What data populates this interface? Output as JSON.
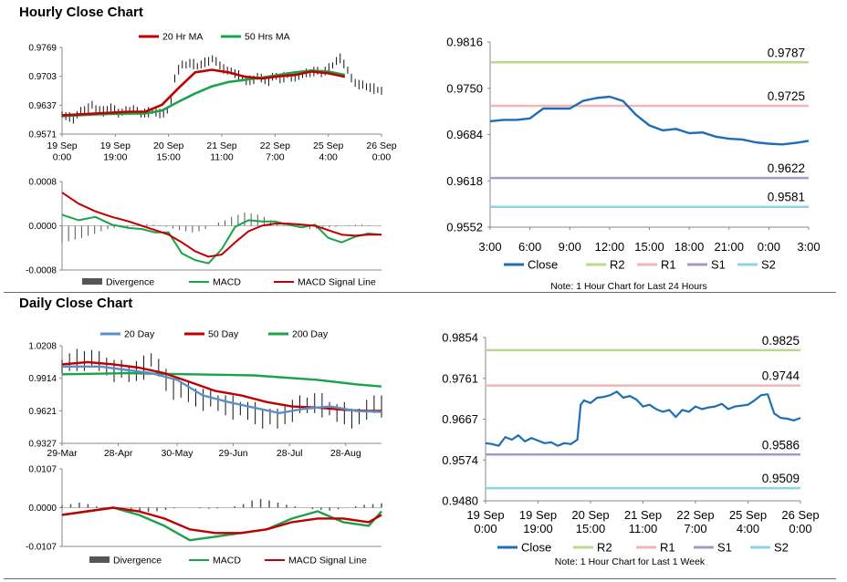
{
  "sections": {
    "hourly_title": "Hourly Close Chart",
    "daily_title": "Daily Close Chart"
  },
  "colors": {
    "close": "#1f6eb5",
    "ma_short": "#c00000",
    "ma_long": "#1aa34a",
    "ma20_day": "#5b8fc8",
    "r2": "#b9d98c",
    "r1": "#f2b6b6",
    "s1": "#a898c4",
    "s2": "#8fd3e3",
    "divergence": "#555555",
    "price_bar": "#111111"
  },
  "chart_data": [
    {
      "id": "hourly_price",
      "type": "line",
      "legend": [
        "20 Hr MA",
        "50 Hrs MA"
      ],
      "yticks": [
        "0.9769",
        "0.9703",
        "0.9637",
        "0.9571"
      ],
      "ylim": [
        0.9571,
        0.9769
      ],
      "xticks": [
        [
          "19 Sep",
          "0:00"
        ],
        [
          "19 Sep",
          "19:00"
        ],
        [
          "20 Sep",
          "15:00"
        ],
        [
          "21 Sep",
          "11:00"
        ],
        [
          "22 Sep",
          "7:00"
        ],
        [
          "25 Sep",
          "4:00"
        ],
        [
          "26 Sep",
          "0:00"
        ]
      ],
      "xlim": [
        0,
        96
      ],
      "price": [
        0.9616,
        0.9612,
        0.961,
        0.9608,
        0.9614,
        0.9622,
        0.9628,
        0.9632,
        0.9636,
        0.963,
        0.9626,
        0.9624,
        0.9628,
        0.9632,
        0.9626,
        0.9622,
        0.962,
        0.9624,
        0.9626,
        0.9628,
        0.9622,
        0.9618,
        0.962,
        0.9622,
        0.9624,
        0.962,
        0.9618,
        0.9622,
        0.9625,
        0.9648,
        0.97,
        0.972,
        0.9728,
        0.973,
        0.9734,
        0.9732,
        0.9726,
        0.973,
        0.9735,
        0.974,
        0.9742,
        0.9736,
        0.973,
        0.9722,
        0.9714,
        0.9716,
        0.971,
        0.9706,
        0.9698,
        0.9692,
        0.9694,
        0.9698,
        0.9702,
        0.9698,
        0.9696,
        0.9694,
        0.97,
        0.9704,
        0.9698,
        0.9702,
        0.9706,
        0.97,
        0.9702,
        0.9708,
        0.9706,
        0.971,
        0.9712,
        0.9716,
        0.9714,
        0.971,
        0.9716,
        0.9722,
        0.9728,
        0.9738,
        0.9744,
        0.9734,
        0.9716,
        0.9698,
        0.969,
        0.9686,
        0.9682,
        0.968,
        0.9678,
        0.9676,
        0.9672,
        0.967
      ],
      "series": [
        {
          "name": "20 Hr MA",
          "x": [
            0,
            10,
            20,
            25,
            30,
            35,
            40,
            45,
            50,
            55,
            60,
            65,
            70,
            75,
            80,
            85
          ],
          "values": [
            0.9614,
            0.9618,
            0.9622,
            0.9622,
            0.9638,
            0.9676,
            0.9712,
            0.9718,
            0.9712,
            0.9702,
            0.9698,
            0.9703,
            0.9706,
            0.9714,
            0.971,
            0.9702
          ]
        },
        {
          "name": "50 Hrs MA",
          "x": [
            0,
            10,
            20,
            25,
            30,
            35,
            40,
            45,
            50,
            55,
            60,
            65,
            70,
            75,
            80,
            85
          ],
          "values": [
            0.9612,
            0.9616,
            0.9618,
            0.9618,
            0.9625,
            0.9645,
            0.9664,
            0.968,
            0.969,
            0.9695,
            0.97,
            0.9706,
            0.9712,
            0.9716,
            0.9714,
            0.9706
          ]
        }
      ]
    },
    {
      "id": "hourly_macd",
      "type": "line",
      "legend": [
        "Divergence",
        "MACD",
        "MACD Signal Line"
      ],
      "yticks": [
        "0.0008",
        "0.0000",
        "-0.0008"
      ],
      "ylim": [
        -0.0008,
        0.0008
      ],
      "divergence": [
        -0.0003,
        -0.00028,
        -0.00025,
        -0.00022,
        -0.00018,
        -0.00015,
        -0.0001,
        -6e-05,
        -4e-05,
        -3e-05,
        -2e-05,
        -1e-05,
        2e-05,
        3e-05,
        2e-05,
        1e-05,
        -2e-05,
        -5e-05,
        -8e-05,
        -0.0001,
        -0.00012,
        -0.0001,
        -6e-05,
        0.0,
        6e-05,
        0.0001,
        0.00016,
        0.0002,
        0.00024,
        0.00022,
        0.0002,
        0.00016,
        0.0001,
        6e-05,
        2e-05,
        0.0,
        -2e-05,
        -4e-05,
        -6e-05,
        -5e-05,
        -4e-05,
        -3e-05,
        -2e-05,
        0.0,
        1e-05,
        2e-05,
        2e-05,
        1e-05,
        0.0,
        0.0
      ],
      "series": [
        {
          "name": "MACD",
          "x": [
            0,
            5,
            10,
            15,
            20,
            24,
            28,
            32,
            36,
            40,
            44,
            48,
            52,
            56,
            60,
            64,
            68,
            72,
            76,
            80,
            84,
            88,
            92,
            96
          ],
          "values": [
            0.0002,
            0.0001,
            0.00016,
            2e-05,
            -4e-05,
            -6e-05,
            -0.00012,
            -0.00012,
            -0.0005,
            -0.00062,
            -0.00068,
            -0.00042,
            -2e-05,
            0.0001,
            8e-05,
            8e-05,
            2e-05,
            -3e-05,
            2e-05,
            -0.00022,
            -0.0003,
            -0.0002,
            -0.00014,
            -0.00016
          ]
        },
        {
          "name": "MACD Signal Line",
          "x": [
            0,
            5,
            10,
            15,
            20,
            24,
            28,
            32,
            36,
            40,
            44,
            48,
            52,
            56,
            60,
            64,
            68,
            72,
            76,
            80,
            84,
            88,
            92,
            96
          ],
          "values": [
            0.0006,
            0.0004,
            0.00026,
            0.00016,
            8e-05,
            0.0,
            -8e-05,
            -0.00016,
            -0.0003,
            -0.00046,
            -0.00056,
            -0.00052,
            -0.0003,
            -0.0001,
            0.0,
            4e-05,
            4e-05,
            2e-05,
            0.0,
            -8e-05,
            -0.00016,
            -0.00018,
            -0.00016,
            -0.00016
          ]
        }
      ]
    },
    {
      "id": "hourly_close",
      "type": "line",
      "yticks": [
        "0.9816",
        "0.9750",
        "0.9684",
        "0.9618",
        "0.9552"
      ],
      "ylim": [
        0.9552,
        0.9816
      ],
      "xticks": [
        "3:00",
        "6:00",
        "9:00",
        "12:00",
        "15:00",
        "18:00",
        "21:00",
        "0:00",
        "3:00"
      ],
      "x": [
        0,
        1,
        2,
        3,
        4,
        5,
        6,
        7,
        8,
        9,
        10,
        11,
        12,
        13,
        14,
        15,
        16,
        17,
        18,
        19,
        20,
        21,
        22,
        23,
        24
      ],
      "series": [
        {
          "name": "Close",
          "values": [
            0.9703,
            0.9705,
            0.9705,
            0.9707,
            0.9721,
            0.9721,
            0.9721,
            0.9732,
            0.9736,
            0.9738,
            0.9732,
            0.9712,
            0.9697,
            0.969,
            0.9692,
            0.9686,
            0.9687,
            0.9681,
            0.9678,
            0.9677,
            0.9673,
            0.9671,
            0.967,
            0.9672,
            0.9675
          ]
        }
      ],
      "levels": [
        {
          "name": "R2",
          "value": 0.9787,
          "label": "0.9787"
        },
        {
          "name": "R1",
          "value": 0.9725,
          "label": "0.9725"
        },
        {
          "name": "S1",
          "value": 0.9622,
          "label": "0.9622"
        },
        {
          "name": "S2",
          "value": 0.9581,
          "label": "0.9581"
        }
      ],
      "legend": [
        "Close",
        "R2",
        "R1",
        "S1",
        "S2"
      ],
      "note": "Note: 1 Hour Chart for Last 24 Hours"
    },
    {
      "id": "daily_price",
      "type": "line",
      "legend": [
        "20 Day",
        "50 Day",
        "200 Day"
      ],
      "yticks": [
        "1.0208",
        "0.9914",
        "0.9621",
        "0.9327"
      ],
      "ylim": [
        0.9327,
        1.0208
      ],
      "xticks": [
        "29-Mar",
        "28-Apr",
        "30-May",
        "29-Jun",
        "28-Jul",
        "28-Aug"
      ],
      "xlim": [
        0,
        125
      ],
      "price": [
        1.002,
        1.006,
        1.008,
        1.01,
        1.009,
        1.006,
        1.004,
        1.0,
        0.998,
        0.996,
        0.999,
        1.002,
        1.008,
        1.001,
        0.99,
        0.984,
        0.98,
        0.978,
        0.976,
        0.974,
        0.972,
        0.97,
        0.968,
        0.966,
        0.964,
        0.962,
        0.96,
        0.958,
        0.956,
        0.954,
        0.96,
        0.964,
        0.966,
        0.968,
        0.97,
        0.968,
        0.964,
        0.96,
        0.96,
        0.958,
        0.956,
        0.962,
        0.97,
        0.968
      ],
      "series": [
        {
          "name": "20 Day",
          "x": [
            0,
            15,
            25,
            35,
            45,
            55,
            65,
            75,
            85,
            95,
            105,
            115,
            125
          ],
          "values": [
            1.002,
            1.002,
            0.999,
            0.996,
            0.99,
            0.976,
            0.97,
            0.965,
            0.96,
            0.964,
            0.966,
            0.962,
            0.961
          ]
        },
        {
          "name": "50 Day",
          "x": [
            0,
            10,
            20,
            30,
            40,
            50,
            60,
            70,
            80,
            90,
            100,
            110,
            120,
            125
          ],
          "values": [
            1.004,
            1.006,
            1.004,
            1.001,
            0.996,
            0.988,
            0.98,
            0.976,
            0.97,
            0.966,
            0.965,
            0.963,
            0.962,
            0.962
          ]
        },
        {
          "name": "200 Day",
          "x": [
            0,
            25,
            50,
            75,
            100,
            115,
            125
          ],
          "values": [
            0.995,
            0.996,
            0.995,
            0.994,
            0.99,
            0.986,
            0.984
          ]
        }
      ]
    },
    {
      "id": "daily_macd",
      "type": "line",
      "legend": [
        "Divergence",
        "MACD",
        "MACD Signal Line"
      ],
      "yticks": [
        "0.0107",
        "0.0000",
        "-0.0107"
      ],
      "ylim": [
        -0.0107,
        0.0107
      ],
      "divergence": [
        0.0006,
        0.001,
        0.0014,
        0.001,
        0.0004,
        0.0,
        -0.0004,
        -0.0008,
        -0.0012,
        -0.0014,
        -0.0012,
        -0.001,
        -0.0006,
        -0.0002,
        0.0,
        0.0,
        -0.0002,
        -0.0003,
        -0.0002,
        0.0,
        0.0004,
        0.001,
        0.002,
        0.0024,
        0.002,
        0.0014,
        0.0008,
        0.0004,
        0.0,
        -0.0004,
        -0.0006,
        -0.0008,
        -0.0004,
        0.0,
        0.0004,
        0.0008,
        0.001,
        0.0012
      ],
      "series": [
        {
          "name": "MACD",
          "x": [
            0,
            10,
            20,
            30,
            40,
            50,
            60,
            70,
            80,
            90,
            100,
            110,
            120,
            125
          ],
          "values": [
            -0.002,
            -0.001,
            0.0,
            -0.002,
            -0.005,
            -0.009,
            -0.008,
            -0.007,
            -0.006,
            -0.003,
            -0.001,
            -0.004,
            -0.005,
            -0.001
          ]
        },
        {
          "name": "MACD Signal Line",
          "x": [
            0,
            10,
            20,
            30,
            40,
            50,
            60,
            70,
            80,
            90,
            100,
            110,
            120,
            125
          ],
          "values": [
            -0.002,
            -0.001,
            0.0,
            -0.001,
            -0.003,
            -0.006,
            -0.007,
            -0.007,
            -0.006,
            -0.004,
            -0.003,
            -0.003,
            -0.004,
            -0.002
          ]
        }
      ]
    },
    {
      "id": "weekly_close",
      "type": "line",
      "yticks": [
        "0.9854",
        "0.9761",
        "0.9667",
        "0.9574",
        "0.9480"
      ],
      "ylim": [
        0.948,
        0.9854
      ],
      "xticks": [
        [
          "19 Sep",
          "0:00"
        ],
        [
          "19 Sep",
          "19:00"
        ],
        [
          "20 Sep",
          "15:00"
        ],
        [
          "21 Sep",
          "11:00"
        ],
        [
          "22 Sep",
          "7:00"
        ],
        [
          "25 Sep",
          "4:00"
        ],
        [
          "26 Sep",
          "0:00"
        ]
      ],
      "xlim": [
        0,
        96
      ],
      "x": [
        0,
        2,
        4,
        6,
        8,
        10,
        12,
        14,
        16,
        18,
        20,
        22,
        24,
        26,
        28,
        29,
        30,
        32,
        34,
        36,
        38,
        40,
        42,
        44,
        46,
        48,
        50,
        52,
        54,
        56,
        58,
        60,
        62,
        64,
        66,
        68,
        70,
        72,
        74,
        76,
        78,
        80,
        82,
        84,
        86,
        88,
        90,
        92,
        94,
        96
      ],
      "series": [
        {
          "name": "Close",
          "values": [
            0.9612,
            0.961,
            0.9606,
            0.9626,
            0.962,
            0.963,
            0.9616,
            0.9624,
            0.9618,
            0.9612,
            0.9614,
            0.9606,
            0.9612,
            0.961,
            0.962,
            0.97,
            0.971,
            0.9704,
            0.9716,
            0.9718,
            0.9722,
            0.973,
            0.9716,
            0.972,
            0.9712,
            0.9696,
            0.97,
            0.969,
            0.9684,
            0.9688,
            0.9672,
            0.9688,
            0.9684,
            0.9696,
            0.969,
            0.9694,
            0.9696,
            0.9702,
            0.969,
            0.9696,
            0.9698,
            0.97,
            0.971,
            0.9722,
            0.9724,
            0.968,
            0.967,
            0.9668,
            0.9664,
            0.967
          ]
        }
      ],
      "levels": [
        {
          "name": "R2",
          "value": 0.9825,
          "label": "0.9825"
        },
        {
          "name": "R1",
          "value": 0.9744,
          "label": "0.9744"
        },
        {
          "name": "S1",
          "value": 0.9586,
          "label": "0.9586"
        },
        {
          "name": "S2",
          "value": 0.9509,
          "label": "0.9509"
        }
      ],
      "legend": [
        "Close",
        "R2",
        "R1",
        "S1",
        "S2"
      ],
      "note": "Note: 1 Hour Chart for Last 1 Week"
    }
  ]
}
